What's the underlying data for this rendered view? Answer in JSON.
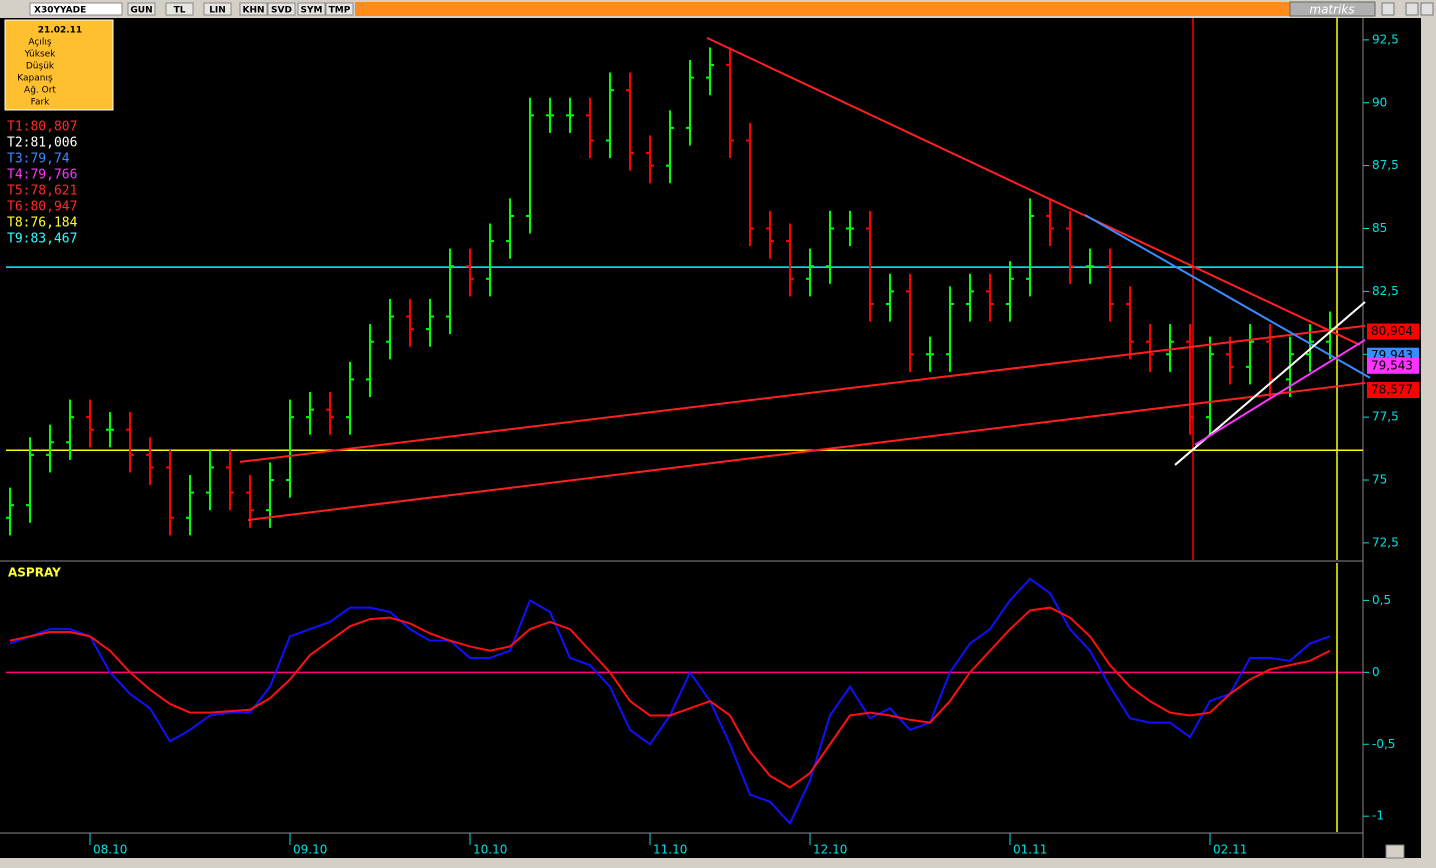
{
  "toolbar": {
    "symbol": "X30YYADE",
    "buttons": [
      "GUN",
      "TL",
      "LIN",
      "KHN",
      "SVD",
      "SYM",
      "TMP"
    ],
    "brand": "matriks"
  },
  "info_box": {
    "date": "21.02.11",
    "rows": [
      "Açılış",
      "Yüksek",
      "Düşük",
      "Kapanış",
      "Ağ. Ort",
      "Fark"
    ]
  },
  "trend_levels": [
    {
      "text": "T1:80,807",
      "color": "#ff2a2a"
    },
    {
      "text": "T2:81,006",
      "color": "#ffffff"
    },
    {
      "text": "T3:79,74",
      "color": "#3a8cff"
    },
    {
      "text": "T4:79,766",
      "color": "#ff33ff"
    },
    {
      "text": "T5:78,621",
      "color": "#ff2a2a"
    },
    {
      "text": "T6:80,947",
      "color": "#ff2a2a"
    },
    {
      "text": "T8:76,184",
      "color": "#ffff33"
    },
    {
      "text": "T9:83,467",
      "color": "#33ffff"
    }
  ],
  "chart_data": [
    {
      "type": "ohlc",
      "categories": [
        null,
        null,
        null,
        null,
        "08.10",
        null,
        null,
        null,
        null,
        null,
        null,
        null,
        null,
        null,
        "09.10",
        null,
        null,
        null,
        null,
        null,
        null,
        null,
        null,
        "10.10",
        null,
        null,
        null,
        null,
        null,
        null,
        null,
        null,
        "11.10",
        null,
        null,
        null,
        null,
        null,
        null,
        null,
        "12.10",
        null,
        null,
        null,
        null,
        null,
        null,
        null,
        null,
        null,
        "01.11",
        null,
        null,
        null,
        null,
        null,
        null,
        null,
        null,
        null,
        "02.11",
        null,
        null,
        null,
        null,
        null,
        null
      ],
      "open": [
        73.5,
        74,
        76,
        76.5,
        77.5,
        77,
        77,
        76,
        75.5,
        73.5,
        74.5,
        75.5,
        74.5,
        73.8,
        75,
        77.5,
        77.8,
        77.5,
        79,
        80.5,
        81.5,
        81,
        81.5,
        83.5,
        83,
        84.5,
        85.5,
        89.5,
        89.5,
        89.5,
        88.5,
        90.5,
        88,
        87.5,
        89,
        91,
        91.5,
        88.5,
        85,
        84.5,
        83,
        83.5,
        85,
        85,
        82,
        82.5,
        80,
        80,
        82,
        82.5,
        82,
        83,
        85.5,
        85,
        83.5,
        83.5,
        82,
        80.5,
        80,
        80.5,
        77.5,
        80,
        79.5,
        80.5,
        79,
        80,
        80.5
      ],
      "high": [
        74.7,
        76.7,
        77.2,
        78.2,
        78.2,
        77.7,
        77.7,
        76.7,
        76.2,
        75.2,
        76.2,
        76.2,
        75.2,
        75.7,
        78.2,
        78.5,
        78.5,
        79.7,
        81.2,
        82.2,
        82.2,
        82.2,
        84.2,
        84.2,
        85.2,
        86.2,
        90.2,
        90.2,
        90.2,
        90.2,
        91.2,
        91.2,
        88.7,
        89.7,
        91.7,
        92.2,
        92.2,
        89.2,
        85.7,
        85.2,
        84.2,
        85.7,
        85.7,
        85.7,
        83.2,
        83.2,
        80.7,
        82.7,
        83.2,
        83.2,
        83.7,
        86.2,
        86.2,
        85.7,
        84.2,
        84.2,
        82.7,
        81.2,
        81.2,
        81.2,
        80.7,
        80.7,
        81.2,
        81.2,
        80.7,
        81.2,
        81.7
      ],
      "low": [
        72.8,
        73.3,
        75.3,
        75.8,
        76.3,
        76.3,
        75.3,
        74.8,
        72.8,
        72.8,
        73.8,
        73.8,
        73.1,
        73.1,
        74.3,
        76.8,
        76.8,
        76.8,
        78.3,
        79.8,
        80.3,
        80.3,
        80.8,
        82.3,
        82.3,
        83.8,
        84.8,
        88.8,
        88.8,
        87.8,
        87.8,
        87.3,
        86.8,
        86.8,
        88.3,
        90.3,
        87.8,
        84.3,
        83.8,
        82.3,
        82.3,
        82.8,
        84.3,
        81.3,
        81.3,
        79.3,
        79.3,
        79.3,
        81.3,
        81.3,
        81.3,
        82.3,
        84.3,
        82.8,
        82.8,
        81.3,
        79.8,
        79.3,
        79.3,
        76.8,
        76.8,
        78.8,
        78.8,
        78.3,
        78.3,
        79.3,
        79.8
      ],
      "close": [
        74,
        76,
        76.5,
        77.5,
        77,
        77,
        76,
        75.5,
        73.5,
        74.5,
        75.5,
        74.5,
        73.8,
        75,
        77.5,
        77.8,
        77.5,
        79,
        80.5,
        81.5,
        81,
        81.5,
        83.5,
        83,
        84.5,
        85.5,
        89.5,
        89.5,
        89.5,
        88.5,
        90.5,
        88,
        87.5,
        89,
        91,
        91.5,
        88.5,
        85,
        84.5,
        83,
        83.5,
        85,
        85,
        82,
        82.5,
        80,
        80,
        82,
        82.5,
        82,
        83,
        85.5,
        85,
        83.5,
        83.5,
        82,
        80.5,
        80,
        80.5,
        77.5,
        80,
        79.5,
        80.5,
        79,
        80,
        80.5,
        81
      ],
      "up_color": "#00ff00",
      "down_color": "#ff0000",
      "ylim": [
        71.82,
        93.37
      ],
      "yticks": [
        {
          "value": 72.5,
          "label": "72,5"
        },
        {
          "value": 75,
          "label": "75"
        },
        {
          "value": 77.5,
          "label": "77,5"
        },
        {
          "value": 80,
          "label": "80"
        },
        {
          "value": 82.5,
          "label": "82,5"
        },
        {
          "value": 85,
          "label": "85"
        },
        {
          "value": 87.5,
          "label": "87,5"
        },
        {
          "value": 90,
          "label": "90"
        },
        {
          "value": 92.5,
          "label": "92,5"
        }
      ],
      "hlines": [
        {
          "value": 83.467,
          "color": "#00ffff"
        },
        {
          "value": 76.184,
          "color": "#ffff00"
        }
      ],
      "vlines": [
        {
          "x": 59.15,
          "color": "#ff0000"
        },
        {
          "x": 66.35,
          "color": "#ffff00"
        }
      ],
      "lines": [
        {
          "color": "#ff2020",
          "x": [
            34.85,
            67.5
          ],
          "y": [
            92.58,
            80.37
          ]
        },
        {
          "color": "#ff2020",
          "x": [
            11.9,
            67.75
          ],
          "y": [
            73.41,
            78.86
          ]
        },
        {
          "color": "#ff2020",
          "x": [
            11.5,
            67.75
          ],
          "y": [
            75.72,
            81.13
          ]
        },
        {
          "color": "#3a8cff",
          "x": [
            53.75,
            68
          ],
          "y": [
            85.54,
            79.06
          ]
        },
        {
          "color": "#ffffff",
          "x": [
            58.25,
            67.75
          ],
          "y": [
            75.6,
            82.08
          ]
        },
        {
          "color": "#ff33ff",
          "x": [
            59.25,
            67.75
          ],
          "y": [
            76.4,
            80.57
          ]
        }
      ],
      "price_tags": [
        {
          "label": "80,904",
          "value": 80.904,
          "color": "#ff0000"
        },
        {
          "label": "79,943",
          "value": 79.943,
          "color": "#3a8cff"
        },
        {
          "label": "79,543",
          "value": 79.543,
          "color": "#ff33ff"
        },
        {
          "label": "78,577",
          "value": 78.577,
          "color": "#ff0000"
        }
      ]
    },
    {
      "type": "line",
      "title": "ASPRAY",
      "series": [
        {
          "color": "#1010ff",
          "values": [
            0.2,
            0.25,
            0.3,
            0.3,
            0.25,
            0.0,
            -0.15,
            -0.25,
            -0.48,
            -0.4,
            -0.3,
            -0.28,
            -0.28,
            -0.1,
            0.25,
            0.3,
            0.35,
            0.45,
            0.45,
            0.42,
            0.3,
            0.22,
            0.22,
            0.1,
            0.1,
            0.15,
            0.5,
            0.42,
            0.1,
            0.05,
            -0.1,
            -0.4,
            -0.5,
            -0.3,
            0.0,
            -0.2,
            -0.5,
            -0.85,
            -0.9,
            -1.05,
            -0.75,
            -0.3,
            -0.1,
            -0.32,
            -0.25,
            -0.4,
            -0.35,
            0.0,
            0.2,
            0.3,
            0.5,
            0.65,
            0.55,
            0.3,
            0.15,
            -0.1,
            -0.32,
            -0.35,
            -0.35,
            -0.45,
            -0.2,
            -0.15,
            0.1,
            0.1,
            0.08,
            0.2,
            0.25
          ]
        },
        {
          "color": "#ff1010",
          "values": [
            0.22,
            0.25,
            0.28,
            0.28,
            0.25,
            0.15,
            0.0,
            -0.12,
            -0.22,
            -0.28,
            -0.28,
            -0.27,
            -0.26,
            -0.18,
            -0.05,
            0.12,
            0.22,
            0.32,
            0.37,
            0.38,
            0.34,
            0.27,
            0.22,
            0.18,
            0.15,
            0.18,
            0.3,
            0.35,
            0.3,
            0.15,
            0.0,
            -0.2,
            -0.3,
            -0.3,
            -0.25,
            -0.2,
            -0.3,
            -0.55,
            -0.72,
            -0.8,
            -0.7,
            -0.5,
            -0.3,
            -0.28,
            -0.3,
            -0.33,
            -0.35,
            -0.2,
            0.0,
            0.15,
            0.3,
            0.43,
            0.45,
            0.38,
            0.25,
            0.05,
            -0.1,
            -0.2,
            -0.28,
            -0.3,
            -0.28,
            -0.15,
            -0.05,
            0.02,
            0.05,
            0.08,
            0.15
          ]
        }
      ],
      "ylim": [
        -1.11,
        0.76
      ],
      "yticks": [
        {
          "value": -1,
          "label": "-1"
        },
        {
          "value": -0.5,
          "label": "-0,5"
        },
        {
          "value": 0,
          "label": "0"
        },
        {
          "value": 0.5,
          "label": "0,5"
        }
      ],
      "hlines": [
        {
          "value": 0,
          "color": "#ff0080"
        }
      ],
      "vlines": [
        {
          "x": 66.35,
          "color": "#ffff00"
        }
      ]
    }
  ]
}
